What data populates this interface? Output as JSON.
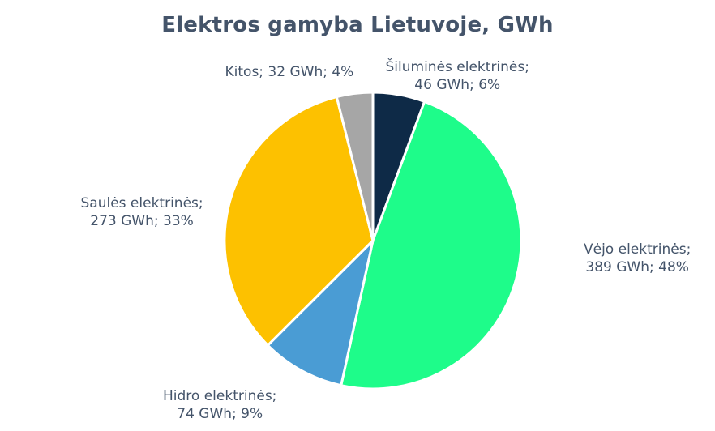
{
  "chart_data": {
    "type": "pie",
    "title": "Elektros gamyba Lietuvoje, GWh",
    "slices": [
      {
        "name": "Šiluminės elektrinės",
        "value": 46,
        "percent": 6,
        "color": "#0e2a47",
        "label_line1": "Šiluminės elektrinės;",
        "label_line2": "46 GWh; 6%"
      },
      {
        "name": "Vėjo elektrinės",
        "value": 389,
        "percent": 48,
        "color": "#1efc8a",
        "label_line1": "Vėjo elektrinės;",
        "label_line2": "389 GWh; 48%"
      },
      {
        "name": "Hidro elektrinės",
        "value": 74,
        "percent": 9,
        "color": "#4a9cd4",
        "label_line1": "Hidro elektrinės;",
        "label_line2": "74 GWh; 9%"
      },
      {
        "name": "Saulės elektrinės",
        "value": 273,
        "percent": 33,
        "color": "#fdc100",
        "label_line1": "Saulės elektrinės;",
        "label_line2": "273 GWh; 33%"
      },
      {
        "name": "Kitos",
        "value": 32,
        "percent": 4,
        "color": "#a6a6a6",
        "label_line1": "Kitos; 32 GWh; 4%",
        "label_line2": ""
      }
    ]
  }
}
